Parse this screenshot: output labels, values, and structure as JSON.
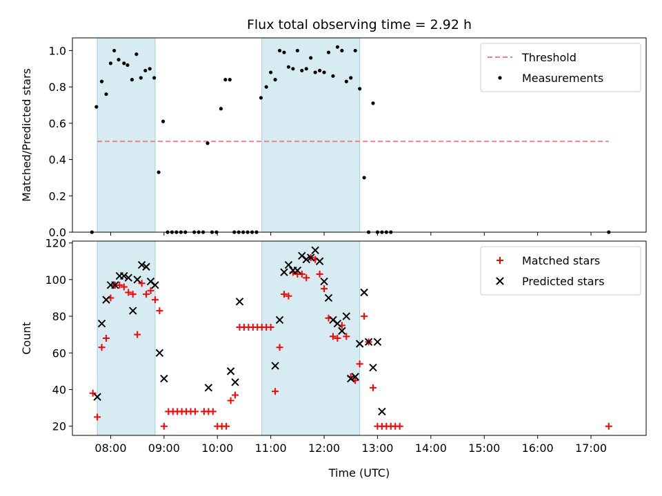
{
  "chart_data": [
    {
      "type": "scatter",
      "title": "Flux total observing time = 2.92 h",
      "xlabel": "",
      "ylabel": "Matched/Predicted stars",
      "xlim": [
        "07:17",
        "18:02"
      ],
      "ylim": [
        0,
        1.07
      ],
      "yticks": [
        "0.0",
        "0.2",
        "0.4",
        "0.6",
        "0.8",
        "1.0"
      ],
      "legend": {
        "position": "top-right",
        "entries": [
          "Threshold",
          "Measurements"
        ]
      },
      "threshold": {
        "name": "Threshold",
        "y": 0.5,
        "x_start": "07:45",
        "x_end": "17:20",
        "color": "#f08080"
      },
      "shaded_regions": [
        {
          "x_start": "07:45",
          "x_end": "08:50"
        },
        {
          "x_start": "10:50",
          "x_end": "12:40"
        }
      ],
      "series": [
        {
          "name": "Measurements",
          "color": "#000000",
          "points": [
            [
              "07:39",
              0.0
            ],
            [
              "07:44",
              0.69
            ],
            [
              "07:50",
              0.83
            ],
            [
              "07:55",
              0.76
            ],
            [
              "08:00",
              0.93
            ],
            [
              "08:04",
              1.0
            ],
            [
              "08:09",
              0.95
            ],
            [
              "08:15",
              0.93
            ],
            [
              "08:19",
              0.92
            ],
            [
              "08:24",
              0.84
            ],
            [
              "08:29",
              0.98
            ],
            [
              "08:34",
              0.85
            ],
            [
              "08:39",
              0.89
            ],
            [
              "08:44",
              0.9
            ],
            [
              "08:49",
              0.85
            ],
            [
              "08:54",
              0.33
            ],
            [
              "08:59",
              0.61
            ],
            [
              "09:04",
              0.0
            ],
            [
              "09:09",
              0.0
            ],
            [
              "09:14",
              0.0
            ],
            [
              "09:19",
              0.0
            ],
            [
              "09:24",
              0.0
            ],
            [
              "09:34",
              0.0
            ],
            [
              "09:39",
              0.0
            ],
            [
              "09:44",
              0.0
            ],
            [
              "09:49",
              0.49
            ],
            [
              "09:54",
              0.0
            ],
            [
              "09:59",
              0.0
            ],
            [
              "10:04",
              0.68
            ],
            [
              "10:09",
              0.84
            ],
            [
              "10:14",
              0.84
            ],
            [
              "10:19",
              0.0
            ],
            [
              "10:24",
              0.0
            ],
            [
              "10:29",
              0.0
            ],
            [
              "10:34",
              0.0
            ],
            [
              "10:39",
              0.0
            ],
            [
              "10:44",
              0.0
            ],
            [
              "10:49",
              0.74
            ],
            [
              "10:55",
              0.8
            ],
            [
              "11:00",
              0.88
            ],
            [
              "11:05",
              0.84
            ],
            [
              "11:10",
              1.0
            ],
            [
              "11:15",
              0.99
            ],
            [
              "11:20",
              0.91
            ],
            [
              "11:25",
              0.9
            ],
            [
              "11:30",
              1.0
            ],
            [
              "11:35",
              0.89
            ],
            [
              "11:40",
              0.9
            ],
            [
              "11:45",
              0.96
            ],
            [
              "11:50",
              0.88
            ],
            [
              "11:55",
              0.89
            ],
            [
              "12:00",
              0.88
            ],
            [
              "12:05",
              0.99
            ],
            [
              "12:10",
              0.86
            ],
            [
              "12:15",
              1.02
            ],
            [
              "12:20",
              1.0
            ],
            [
              "12:25",
              0.83
            ],
            [
              "12:30",
              0.85
            ],
            [
              "12:35",
              1.0
            ],
            [
              "12:40",
              0.79
            ],
            [
              "12:45",
              0.3
            ],
            [
              "12:50",
              0.0
            ],
            [
              "12:55",
              0.71
            ],
            [
              "13:00",
              0.0
            ],
            [
              "13:05",
              0.0
            ],
            [
              "13:10",
              0.0
            ],
            [
              "13:15",
              0.0
            ],
            [
              "17:20",
              0.0
            ]
          ]
        }
      ]
    },
    {
      "type": "scatter",
      "title": "",
      "xlabel": "Time (UTC)",
      "ylabel": "Count",
      "xlim": [
        "07:17",
        "18:02"
      ],
      "ylim": [
        15,
        121
      ],
      "yticks": [
        "20",
        "40",
        "60",
        "80",
        "100",
        "120"
      ],
      "xticks": [
        "08:00",
        "09:00",
        "10:00",
        "11:00",
        "12:00",
        "13:00",
        "14:00",
        "15:00",
        "16:00",
        "17:00"
      ],
      "legend": {
        "position": "top-right",
        "entries": [
          "Matched stars",
          "Predicted stars"
        ]
      },
      "shaded_regions": [
        {
          "x_start": "07:45",
          "x_end": "08:50"
        },
        {
          "x_start": "10:50",
          "x_end": "12:40"
        }
      ],
      "series": [
        {
          "name": "Matched stars",
          "marker": "plus",
          "color": "#ff0000",
          "points": [
            [
              "07:40",
              38
            ],
            [
              "07:45",
              25
            ],
            [
              "07:50",
              63
            ],
            [
              "07:55",
              68
            ],
            [
              "08:00",
              90
            ],
            [
              "08:05",
              97
            ],
            [
              "08:10",
              97
            ],
            [
              "08:15",
              96
            ],
            [
              "08:20",
              93
            ],
            [
              "08:25",
              92
            ],
            [
              "08:30",
              70
            ],
            [
              "08:35",
              98
            ],
            [
              "08:40",
              92
            ],
            [
              "08:45",
              94
            ],
            [
              "08:50",
              89
            ],
            [
              "08:55",
              83
            ],
            [
              "09:00",
              20
            ],
            [
              "09:05",
              28
            ],
            [
              "09:10",
              28
            ],
            [
              "09:15",
              28
            ],
            [
              "09:20",
              28
            ],
            [
              "09:25",
              28
            ],
            [
              "09:30",
              28
            ],
            [
              "09:35",
              28
            ],
            [
              "09:45",
              28
            ],
            [
              "09:50",
              28
            ],
            [
              "09:55",
              28
            ],
            [
              "10:00",
              20
            ],
            [
              "10:05",
              20
            ],
            [
              "10:10",
              20
            ],
            [
              "10:15",
              34
            ],
            [
              "10:20",
              37
            ],
            [
              "10:25",
              74
            ],
            [
              "10:30",
              74
            ],
            [
              "10:35",
              74
            ],
            [
              "10:40",
              74
            ],
            [
              "10:45",
              74
            ],
            [
              "10:50",
              74
            ],
            [
              "10:55",
              74
            ],
            [
              "11:00",
              74
            ],
            [
              "11:05",
              39
            ],
            [
              "11:10",
              63
            ],
            [
              "11:15",
              92
            ],
            [
              "11:20",
              91
            ],
            [
              "11:25",
              104
            ],
            [
              "11:30",
              103
            ],
            [
              "11:35",
              103
            ],
            [
              "11:40",
              101
            ],
            [
              "11:45",
              112
            ],
            [
              "11:50",
              111
            ],
            [
              "11:55",
              103
            ],
            [
              "12:00",
              95
            ],
            [
              "12:05",
              79
            ],
            [
              "12:10",
              69
            ],
            [
              "12:15",
              68
            ],
            [
              "12:20",
              75
            ],
            [
              "12:25",
              69
            ],
            [
              "12:30",
              47
            ],
            [
              "12:35",
              45
            ],
            [
              "12:40",
              54
            ],
            [
              "12:45",
              80
            ],
            [
              "12:50",
              66
            ],
            [
              "12:55",
              41
            ],
            [
              "13:00",
              20
            ],
            [
              "13:05",
              20
            ],
            [
              "13:10",
              20
            ],
            [
              "13:15",
              20
            ],
            [
              "13:20",
              20
            ],
            [
              "13:25",
              20
            ],
            [
              "17:20",
              20
            ]
          ]
        },
        {
          "name": "Predicted stars",
          "marker": "x",
          "color": "#000000",
          "points": [
            [
              "07:45",
              36
            ],
            [
              "07:50",
              76
            ],
            [
              "07:55",
              89
            ],
            [
              "08:00",
              97
            ],
            [
              "08:05",
              97
            ],
            [
              "08:10",
              102
            ],
            [
              "08:15",
              102
            ],
            [
              "08:20",
              101
            ],
            [
              "08:25",
              83
            ],
            [
              "08:30",
              100
            ],
            [
              "08:35",
              108
            ],
            [
              "08:40",
              107
            ],
            [
              "08:45",
              99
            ],
            [
              "08:50",
              97
            ],
            [
              "08:55",
              60
            ],
            [
              "09:00",
              46
            ],
            [
              "09:50",
              41
            ],
            [
              "10:15",
              50
            ],
            [
              "10:20",
              44
            ],
            [
              "10:25",
              88
            ],
            [
              "11:05",
              53
            ],
            [
              "11:10",
              78
            ],
            [
              "11:15",
              104
            ],
            [
              "11:20",
              108
            ],
            [
              "11:25",
              105
            ],
            [
              "11:30",
              105
            ],
            [
              "11:35",
              113
            ],
            [
              "11:40",
              111
            ],
            [
              "11:45",
              112
            ],
            [
              "11:50",
              116
            ],
            [
              "11:55",
              110
            ],
            [
              "12:00",
              99
            ],
            [
              "12:05",
              90
            ],
            [
              "12:10",
              78
            ],
            [
              "12:15",
              76
            ],
            [
              "12:20",
              72
            ],
            [
              "12:25",
              80
            ],
            [
              "12:30",
              46
            ],
            [
              "12:35",
              47
            ],
            [
              "12:40",
              65
            ],
            [
              "12:45",
              93
            ],
            [
              "12:50",
              66
            ],
            [
              "12:55",
              52
            ],
            [
              "13:00",
              66
            ],
            [
              "13:05",
              28
            ]
          ]
        }
      ]
    }
  ]
}
